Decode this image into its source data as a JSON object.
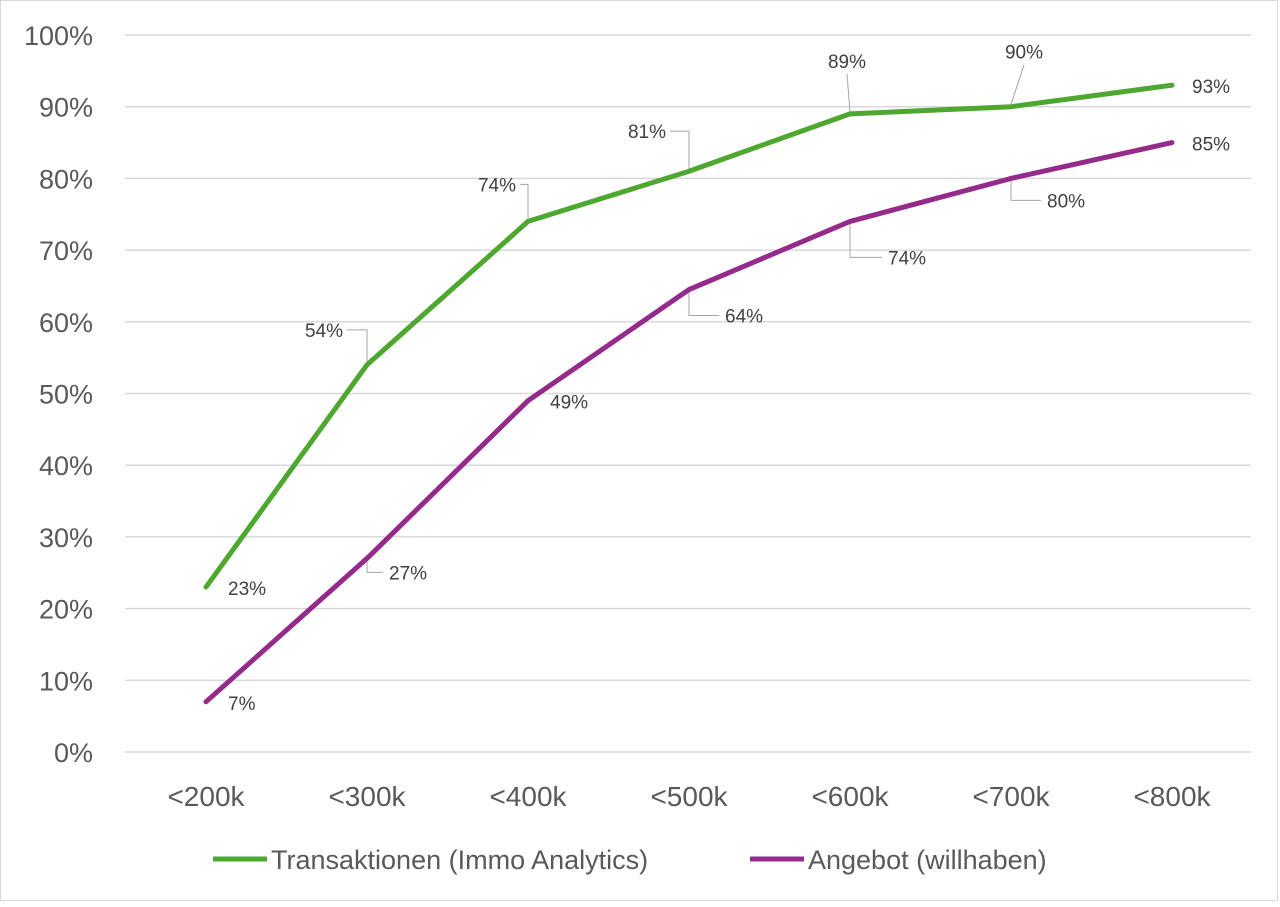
{
  "chart_data": {
    "type": "line",
    "title": "",
    "xlabel": "",
    "ylabel": "",
    "categories": [
      "<200k",
      "<300k",
      "<400k",
      "<500k",
      "<600k",
      "<700k",
      "<800k"
    ],
    "ylim": [
      0,
      1
    ],
    "y_ticks": [
      "0%",
      "10%",
      "20%",
      "30%",
      "40%",
      "50%",
      "60%",
      "70%",
      "80%",
      "90%",
      "100%"
    ],
    "y_tick_values": [
      0,
      0.1,
      0.2,
      0.3,
      0.4,
      0.5,
      0.6,
      0.7,
      0.8,
      0.9,
      1.0
    ],
    "grid": "horizontal",
    "legend_position": "bottom",
    "series": [
      {
        "name": "Transaktionen (Immo Analytics)",
        "color": "#4ea72e",
        "values": [
          0.23,
          0.54,
          0.74,
          0.81,
          0.89,
          0.9,
          0.93
        ],
        "labels": [
          "23%",
          "54%",
          "74%",
          "81%",
          "89%",
          "90%",
          "93%"
        ]
      },
      {
        "name": "Angebot (willhaben)",
        "color": "#962a8b",
        "values": [
          0.07,
          0.27,
          0.49,
          0.645,
          0.74,
          0.8,
          0.85
        ],
        "labels": [
          "7%",
          "27%",
          "49%",
          "64%",
          "74%",
          "80%",
          "85%"
        ]
      }
    ]
  }
}
